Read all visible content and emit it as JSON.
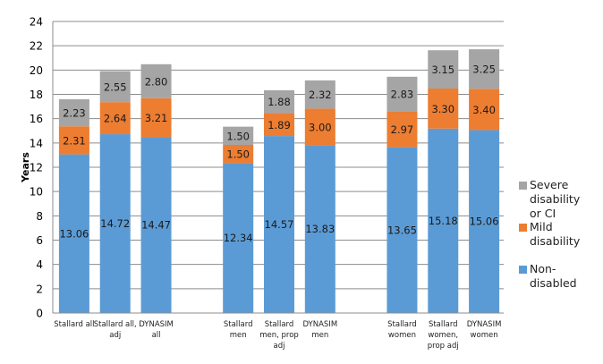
{
  "chart_data": {
    "type": "bar",
    "stacked": true,
    "title": "",
    "xlabel": "",
    "ylabel": "Years",
    "ylim": [
      0,
      24
    ],
    "yticks": [
      0,
      2,
      4,
      6,
      8,
      10,
      12,
      14,
      16,
      18,
      20,
      22,
      24
    ],
    "grid": true,
    "legend_position": "right",
    "groups": [
      {
        "categories": [
          [
            "Stallard all"
          ],
          [
            "Stallard all,",
            "adj"
          ],
          [
            "DYNASIM",
            "all"
          ]
        ]
      },
      {
        "categories": [
          [
            "Stallard",
            "men"
          ],
          [
            "Stallard",
            "men, prop",
            "adj"
          ],
          [
            "DYNASIM",
            "men"
          ]
        ]
      },
      {
        "categories": [
          [
            "Stallard",
            "women"
          ],
          [
            "Stallard",
            "women,",
            "prop adj"
          ],
          [
            "DYNASIM",
            "women"
          ]
        ]
      }
    ],
    "categories": [
      "Stallard all",
      "Stallard all, adj",
      "DYNASIM all",
      "Stallard men",
      "Stallard men, prop adj",
      "DYNASIM men",
      "Stallard women",
      "Stallard women, prop adj",
      "DYNASIM women"
    ],
    "series": [
      {
        "name": "Non-disabled",
        "color": "#5b9bd5",
        "values": [
          13.06,
          14.72,
          14.47,
          12.34,
          14.57,
          13.83,
          13.65,
          15.18,
          15.06
        ]
      },
      {
        "name": "Mild disability",
        "color": "#ed7d31",
        "values": [
          2.31,
          2.64,
          3.21,
          1.5,
          1.89,
          3.0,
          2.97,
          3.3,
          3.4
        ]
      },
      {
        "name": "Severe disability or CI",
        "color": "#a5a5a5",
        "values": [
          2.23,
          2.55,
          2.8,
          1.5,
          1.88,
          2.32,
          2.83,
          3.15,
          3.25
        ]
      }
    ],
    "data_labels": {
      "Non-disabled": [
        "13.06",
        "14.72",
        "14.47",
        "12.34",
        "14.57",
        "13.83",
        "13.65",
        "15.18",
        "15.06"
      ],
      "Mild disability": [
        "2.31",
        "2.64",
        "3.21",
        "1.50",
        "1.89",
        "3.00",
        "2.97",
        "3.30",
        "3.40"
      ],
      "Severe disability or CI": [
        "2.23",
        "2.55",
        "2.80",
        "1.50",
        "1.88",
        "2.32",
        "2.83",
        "3.15",
        "3.25"
      ]
    },
    "legend": [
      {
        "label": "Severe disability or CI",
        "lines": [
          "Severe",
          "disability",
          "or CI"
        ],
        "color": "#a5a5a5"
      },
      {
        "label": "Mild disability",
        "lines": [
          "Mild",
          "disability"
        ],
        "color": "#ed7d31"
      },
      {
        "label": "Non-disabled",
        "lines": [
          "Non-",
          "disabled"
        ],
        "color": "#5b9bd5"
      }
    ]
  }
}
